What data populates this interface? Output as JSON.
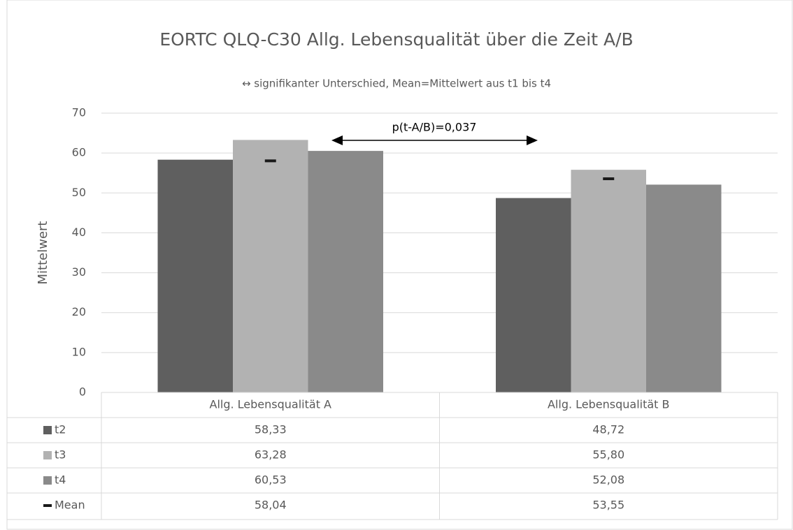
{
  "chart_data": {
    "type": "bar",
    "title": "EORTC QLQ-C30 Allg. Lebensqualität über die Zeit A/B",
    "subtitle": "↔ signifikanter Unterschied, Mean=Mittelwert aus t1 bis t4",
    "y_label": "Mittelwert",
    "annotation": "p(t-A/B)=0,037",
    "categories": [
      "Allg. Lebensqualität A",
      "Allg. Lebensqualität B"
    ],
    "series": [
      {
        "name": "t2",
        "color": "#5f5f5f",
        "values": [
          58.33,
          48.72
        ],
        "value_labels": [
          "58,33",
          "48,72"
        ]
      },
      {
        "name": "t3",
        "color": "#b2b2b2",
        "values": [
          63.28,
          55.8
        ],
        "value_labels": [
          "63,28",
          "55,80"
        ]
      },
      {
        "name": "t4",
        "color": "#8a8a8a",
        "values": [
          60.53,
          52.08
        ],
        "value_labels": [
          "60,53",
          "52,08"
        ]
      },
      {
        "name": "Mean",
        "color": "#1a1a1a",
        "values": [
          58.04,
          53.55
        ],
        "value_labels": [
          "58,04",
          "53,55"
        ],
        "marker": "dash"
      }
    ],
    "ylim": [
      0,
      70
    ],
    "yticks": [
      0,
      10,
      20,
      30,
      40,
      50,
      60,
      70
    ],
    "grid": true,
    "data_table": true
  }
}
